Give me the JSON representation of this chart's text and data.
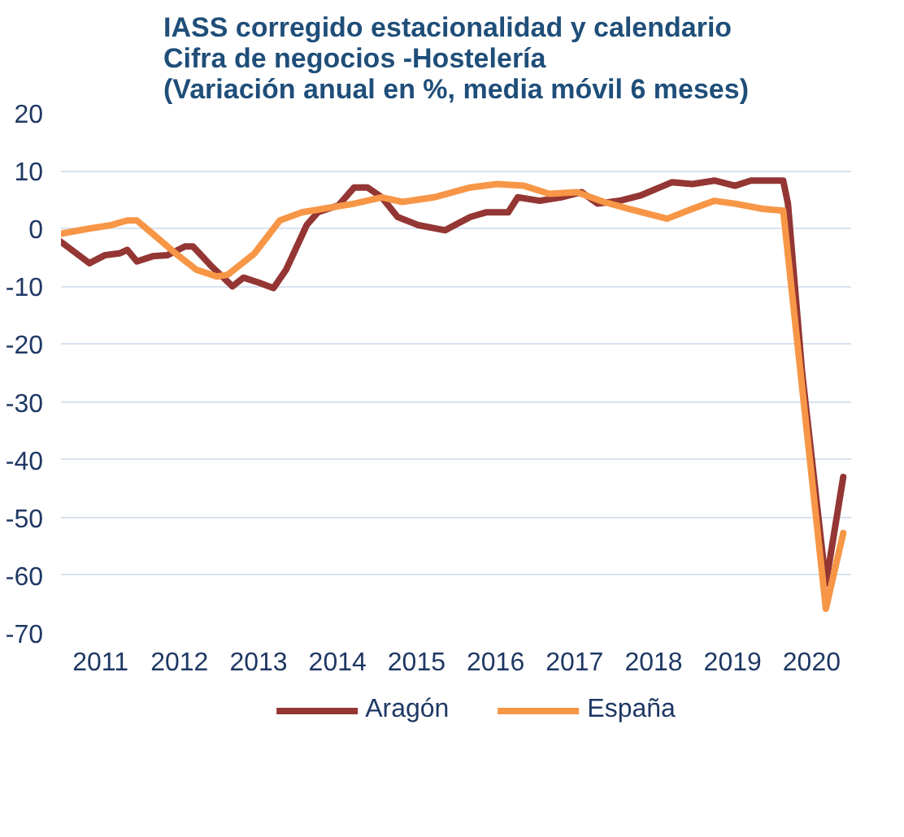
{
  "chart_data": {
    "type": "line",
    "title": "IASS corregido estacionalidad y calendario\nCifra de negocios -Hostelería\n(Variación anual en %, media móvil 6 meses)",
    "xlim": [
      2011,
      2021
    ],
    "xticks": [
      {
        "value": 2011.5,
        "label": "2011"
      },
      {
        "value": 2012.5,
        "label": "2012"
      },
      {
        "value": 2013.5,
        "label": "2013"
      },
      {
        "value": 2014.5,
        "label": "2014"
      },
      {
        "value": 2015.5,
        "label": "2015"
      },
      {
        "value": 2016.5,
        "label": "2016"
      },
      {
        "value": 2017.5,
        "label": "2017"
      },
      {
        "value": 2018.5,
        "label": "2018"
      },
      {
        "value": 2019.5,
        "label": "2019"
      },
      {
        "value": 2020.5,
        "label": "2020"
      }
    ],
    "ylim": [
      -70,
      20
    ],
    "yticks": [
      -70,
      -60,
      -50,
      -40,
      -30,
      -20,
      -10,
      0,
      10,
      20
    ],
    "grid": "y",
    "legend": "bottom",
    "series": [
      {
        "name": "Aragón",
        "color": "#943634",
        "x": [
          2011.0,
          2011.36,
          2011.56,
          2011.74,
          2011.84,
          2011.96,
          2012.16,
          2012.35,
          2012.57,
          2012.67,
          2012.91,
          2013.17,
          2013.31,
          2013.51,
          2013.69,
          2013.85,
          2014.11,
          2014.25,
          2014.51,
          2014.71,
          2014.88,
          2015.06,
          2015.26,
          2015.52,
          2015.86,
          2016.18,
          2016.38,
          2016.66,
          2016.78,
          2017.06,
          2017.33,
          2017.59,
          2017.79,
          2018.07,
          2018.33,
          2018.73,
          2018.99,
          2019.27,
          2019.53,
          2019.73,
          2020.14,
          2020.2,
          2020.38,
          2020.68,
          2020.9
        ],
        "values": [
          -2.3,
          -6,
          -4.6,
          -4.3,
          -3.7,
          -5.7,
          -4.8,
          -4.6,
          -3.1,
          -3.1,
          -6.6,
          -10,
          -8.5,
          -9.4,
          -10.3,
          -7.1,
          0.6,
          2.8,
          4,
          7.1,
          7.1,
          5.4,
          2,
          0.6,
          -0.3,
          2,
          2.8,
          2.8,
          5.4,
          4.8,
          5.4,
          6.3,
          4.3,
          4.8,
          5.7,
          8,
          7.7,
          8.3,
          7.4,
          8.3,
          8.3,
          4.3,
          -25,
          -61.5,
          -43
        ]
      },
      {
        "name": "España",
        "color": "#f79646",
        "x": [
          2011.0,
          2011.36,
          2011.64,
          2011.84,
          2011.96,
          2012.16,
          2012.45,
          2012.71,
          2012.97,
          2013.11,
          2013.45,
          2013.77,
          2014.05,
          2014.31,
          2014.71,
          2015.06,
          2015.32,
          2015.72,
          2016.18,
          2016.52,
          2016.86,
          2017.18,
          2017.53,
          2017.87,
          2018.19,
          2018.67,
          2018.99,
          2019.27,
          2019.53,
          2019.88,
          2020.14,
          2020.68,
          2020.9
        ],
        "values": [
          -0.9,
          0,
          0.6,
          1.4,
          1.4,
          -0.9,
          -4.3,
          -7.1,
          -8.3,
          -8,
          -4.3,
          1.4,
          2.8,
          3.4,
          4.3,
          5.4,
          4.6,
          5.4,
          7.1,
          7.7,
          7.4,
          6,
          6.3,
          4.6,
          3.4,
          1.7,
          3.4,
          4.8,
          4.3,
          3.4,
          3.1,
          -65.8,
          -52.7
        ]
      }
    ]
  }
}
